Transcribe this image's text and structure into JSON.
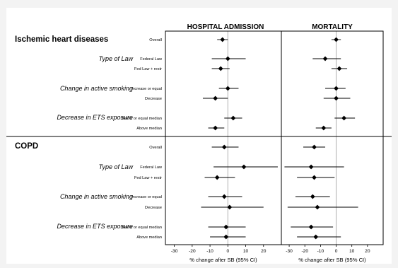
{
  "chart_data": {
    "type": "forest",
    "panels": [
      {
        "title": "HOSPITAL ADMISSION",
        "xlabel": "% change after SB (95% CI)"
      },
      {
        "title": "MORTALITY",
        "xlabel": "% change after SB (95% CI)"
      }
    ],
    "xlim": [
      -35,
      30
    ],
    "xticks": [
      "-30",
      "-20",
      "-10",
      "0",
      "10",
      "20"
    ],
    "xtick_values": [
      -30,
      -20,
      -10,
      0,
      10,
      20
    ],
    "sections": [
      {
        "title": "Ischemic heart diseases",
        "groups": [
          {
            "label": "",
            "rows": [
              {
                "label": "Overall",
                "hosp": {
                  "est": -3,
                  "lo": -6,
                  "hi": 0
                },
                "mort": {
                  "est": 0,
                  "lo": -3,
                  "hi": 3
                }
              }
            ]
          },
          {
            "label": "Type of Law",
            "rows": [
              {
                "label": "Federal Law",
                "hosp": {
                  "est": 0,
                  "lo": -9,
                  "hi": 10
                },
                "mort": {
                  "est": -7,
                  "lo": -15,
                  "hi": 3
                }
              },
              {
                "label": "Fed Law + restr",
                "hosp": {
                  "est": -4,
                  "lo": -9,
                  "hi": 1
                },
                "mort": {
                  "est": 2,
                  "lo": -3,
                  "hi": 7
                }
              }
            ]
          },
          {
            "label": "Change in active smoking",
            "rows": [
              {
                "label": "Increase or equal",
                "hosp": {
                  "est": 0,
                  "lo": -5,
                  "hi": 6
                },
                "mort": {
                  "est": 0,
                  "lo": -7,
                  "hi": 6
                }
              },
              {
                "label": "Decrease",
                "hosp": {
                  "est": -7,
                  "lo": -14,
                  "hi": 0
                },
                "mort": {
                  "est": 0,
                  "lo": -8,
                  "hi": 9
                }
              }
            ]
          },
          {
            "label": "Decrease in ETS exposure",
            "rows": [
              {
                "label": "Below or equal median",
                "hosp": {
                  "est": 3,
                  "lo": -2,
                  "hi": 8
                },
                "mort": {
                  "est": 5,
                  "lo": -1,
                  "hi": 12
                }
              },
              {
                "label": "Above median",
                "hosp": {
                  "est": -7,
                  "lo": -11,
                  "hi": -2
                },
                "mort": {
                  "est": -8,
                  "lo": -13,
                  "hi": -3
                }
              }
            ]
          }
        ]
      },
      {
        "title": "COPD",
        "groups": [
          {
            "label": "",
            "rows": [
              {
                "label": "Overall",
                "hosp": {
                  "est": -2,
                  "lo": -9,
                  "hi": 6
                },
                "mort": {
                  "est": -14,
                  "lo": -21,
                  "hi": -7
                }
              }
            ]
          },
          {
            "label": "Type of Law",
            "rows": [
              {
                "label": "Federal Law",
                "hosp": {
                  "est": 9,
                  "lo": -8,
                  "hi": 28
                },
                "mort": {
                  "est": -16,
                  "lo": -33,
                  "hi": 5
                }
              },
              {
                "label": "Fed Law + restr",
                "hosp": {
                  "est": -6,
                  "lo": -13,
                  "hi": 4
                },
                "mort": {
                  "est": -14,
                  "lo": -25,
                  "hi": -1
                }
              }
            ]
          },
          {
            "label": "Change in active smoking",
            "rows": [
              {
                "label": "Increase or equal",
                "hosp": {
                  "est": -2,
                  "lo": -11,
                  "hi": 8
                },
                "mort": {
                  "est": -15,
                  "lo": -26,
                  "hi": -4
                }
              },
              {
                "label": "Decrease",
                "hosp": {
                  "est": 1,
                  "lo": -15,
                  "hi": 20
                },
                "mort": {
                  "est": -12,
                  "lo": -31,
                  "hi": 14
                }
              }
            ]
          },
          {
            "label": "Decrease in ETS exposure",
            "rows": [
              {
                "label": "Below or equal median",
                "hosp": {
                  "est": -1,
                  "lo": -11,
                  "hi": 10
                },
                "mort": {
                  "est": -16,
                  "lo": -29,
                  "hi": -2
                }
              },
              {
                "label": "Above median",
                "hosp": {
                  "est": -1,
                  "lo": -10,
                  "hi": 10
                },
                "mort": {
                  "est": -13,
                  "lo": -25,
                  "hi": 3
                }
              }
            ]
          }
        ]
      }
    ]
  }
}
